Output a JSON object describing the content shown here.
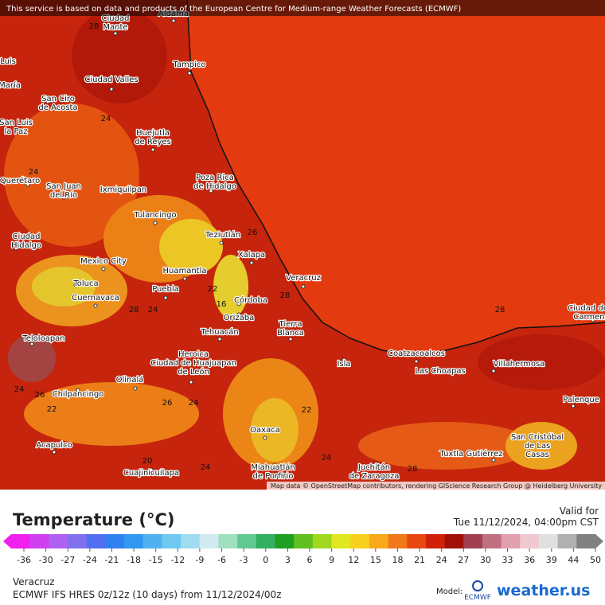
{
  "banner": "This service is based on data and products of the European Centre for Medium-range Weather Forecasts (ECMWF)",
  "attribution": "Map data © OpenStreetMap contributors, rendering GIScience Research Group @ Heidelberg University",
  "cities": [
    {
      "label": [
        "Aldama"
      ]
    },
    {
      "label": [
        "Ciudad",
        "Mante"
      ]
    },
    {
      "label": [
        "Tampico"
      ]
    },
    {
      "label": [
        "Luis"
      ]
    },
    {
      "label": [
        "María"
      ]
    },
    {
      "label": [
        "Ciudad Valles"
      ]
    },
    {
      "label": [
        "San Ciro",
        "de Acosta"
      ]
    },
    {
      "label": [
        "San Luis",
        "la Paz"
      ]
    },
    {
      "label": [
        "Huejutla",
        "de Reyes"
      ]
    },
    {
      "label": [
        "Poza Rica",
        "de Hidalgo"
      ]
    },
    {
      "label": [
        "Querétaro"
      ]
    },
    {
      "label": [
        "San Juan",
        "del Río"
      ]
    },
    {
      "label": [
        "Ixmiquilpan"
      ]
    },
    {
      "label": [
        "Tulancingo"
      ]
    },
    {
      "label": [
        "Ciudad",
        "Hidalgo"
      ]
    },
    {
      "label": [
        "Teziutlán"
      ]
    },
    {
      "label": [
        "Xalapa"
      ]
    },
    {
      "label": [
        "Mexico City"
      ]
    },
    {
      "label": [
        "Huamantla"
      ]
    },
    {
      "label": [
        "Veracruz"
      ]
    },
    {
      "label": [
        "Toluca"
      ]
    },
    {
      "label": [
        "Puebla"
      ]
    },
    {
      "label": [
        "Cuernavaca"
      ]
    },
    {
      "label": [
        "Córdoba"
      ]
    },
    {
      "label": [
        "Orizaba"
      ]
    },
    {
      "label": [
        "Tierra",
        "Blanca"
      ]
    },
    {
      "label": [
        "Tehuacán"
      ]
    },
    {
      "label": [
        "Teloloapan"
      ]
    },
    {
      "label": [
        "Coatzacoalcos"
      ]
    },
    {
      "label": [
        "Heroica",
        "Ciudad de Huajuapan",
        "de León"
      ]
    },
    {
      "label": [
        "Isla"
      ]
    },
    {
      "label": [
        "Villahermosa"
      ]
    },
    {
      "label": [
        "Las Choapas"
      ]
    },
    {
      "label": [
        "Olinalá"
      ]
    },
    {
      "label": [
        "Chilpancingo"
      ]
    },
    {
      "label": [
        "Palenque"
      ]
    },
    {
      "label": [
        "Oaxaca"
      ]
    },
    {
      "label": [
        "San Cristóbal",
        "de Las",
        "Casas"
      ]
    },
    {
      "label": [
        "Acapulco"
      ]
    },
    {
      "label": [
        "Tuxtla Gutiérrez"
      ]
    },
    {
      "label": [
        "Cuajinicuilapa"
      ]
    },
    {
      "label": [
        "Miahuatlán",
        "de Porfirio"
      ]
    },
    {
      "label": [
        "Juchitán",
        "de Zaragoza"
      ]
    },
    {
      "label": [
        "Ciudad del",
        "Carmen"
      ]
    }
  ],
  "contour_labels": [
    28,
    24,
    24,
    26,
    22,
    16,
    24,
    28,
    28,
    28,
    22,
    24,
    24,
    20,
    26,
    24,
    26,
    24,
    22,
    28
  ],
  "legend": {
    "title": "Temperature (°C)",
    "ticks": [
      -36,
      -30,
      -27,
      -24,
      -21,
      -18,
      -15,
      -12,
      -9,
      -6,
      -3,
      0,
      3,
      6,
      9,
      12,
      15,
      18,
      21,
      24,
      27,
      30,
      33,
      36,
      39,
      44,
      50
    ],
    "colors": [
      "#f020f0",
      "#d040f0",
      "#b060f0",
      "#8070f0",
      "#5070f0",
      "#3080f0",
      "#3098f0",
      "#50b0f0",
      "#70c8f0",
      "#a0dcf0",
      "#d0ecf0",
      "#a0e0c0",
      "#60c890",
      "#30b060",
      "#20a020",
      "#60c020",
      "#a0d820",
      "#e0e820",
      "#f8d020",
      "#f8a818",
      "#f07818",
      "#e84810",
      "#d02008",
      "#a01008",
      "#a04050",
      "#c07080",
      "#e0a0b0",
      "#f0c8d0",
      "#e0e0e0",
      "#b0b0b0",
      "#808080"
    ]
  },
  "valid_label": "Valid for",
  "valid_time": "Tue 11/12/2024, 04:00pm CST",
  "location": "Veracruz",
  "model_run": "ECMWF IFS HRES 0z/12z (10 days) from 11/12/2024/00z",
  "model_label": "Model:",
  "model_logo": "ECMWF",
  "brand": "weather.us"
}
